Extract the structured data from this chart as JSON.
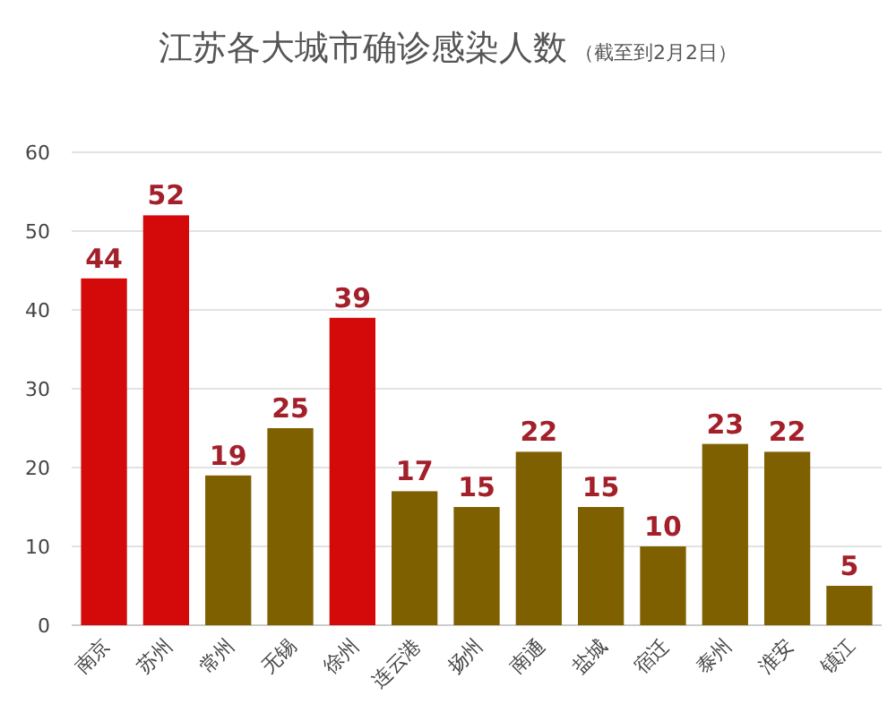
{
  "chart_data": {
    "type": "bar",
    "title": "江苏各大城市确诊感染人数",
    "subtitle": "（截至到2月2日）",
    "categories": [
      "南京",
      "苏州",
      "常州",
      "无锡",
      "徐州",
      "连云港",
      "扬州",
      "南通",
      "盐城",
      "宿迁",
      "泰州",
      "淮安",
      "镇江"
    ],
    "values": [
      44,
      52,
      19,
      25,
      39,
      17,
      15,
      22,
      15,
      10,
      23,
      22,
      5
    ],
    "colors": [
      "#d40a0a",
      "#d40a0a",
      "#7f6000",
      "#7f6000",
      "#d40a0a",
      "#7f6000",
      "#7f6000",
      "#7f6000",
      "#7f6000",
      "#7f6000",
      "#7f6000",
      "#7f6000",
      "#7f6000"
    ],
    "ylim": [
      0,
      60
    ],
    "yticks": [
      0,
      10,
      20,
      30,
      40,
      50,
      60
    ],
    "grid": "y",
    "data_labels": true
  }
}
